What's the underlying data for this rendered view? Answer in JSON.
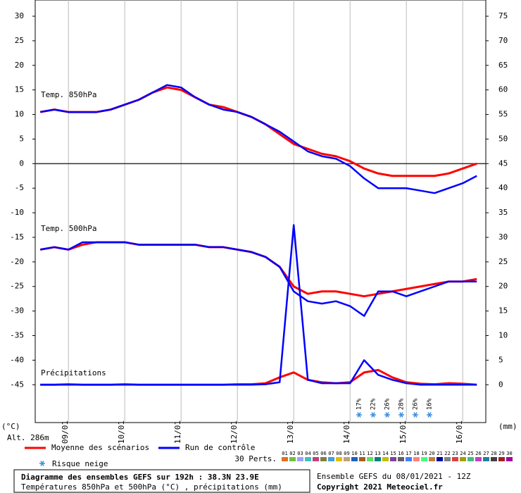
{
  "chart_data": {
    "type": "line",
    "title": "Diagramme des ensembles GEFS sur 192h : 38.3N 23.9E",
    "subtitle": "Températures 850hPa et 500hPa (°C) , précipitations (mm)",
    "run": "Ensemble GEFS du 08/01/2021 - 12Z",
    "copyright": "Copyright 2021 Meteociel.fr",
    "y_label": "(°C)",
    "y2_label": "(mm)",
    "altitude": "Alt. 286m",
    "panels": [
      "Temp. 850hPa",
      "Temp. 500hPa",
      "Précipitations"
    ],
    "panel_axes": [
      "y",
      "y",
      "y2"
    ],
    "x": [
      8.5,
      8.75,
      9,
      9.25,
      9.5,
      9.75,
      10,
      10.25,
      10.5,
      10.75,
      11,
      11.25,
      11.5,
      11.75,
      12,
      12.25,
      12.5,
      12.75,
      13,
      13.25,
      13.5,
      13.75,
      14,
      14.25,
      14.5,
      14.75,
      15,
      15.25,
      15.5,
      15.75,
      16,
      16.25
    ],
    "xlim": [
      8.41,
      16.41
    ],
    "xticks": [
      {
        "value": 9,
        "label": "09/01"
      },
      {
        "value": 10,
        "label": "10/01"
      },
      {
        "value": 11,
        "label": "11/01"
      },
      {
        "value": 12,
        "label": "12/01"
      },
      {
        "value": 13,
        "label": "13/01"
      },
      {
        "value": 14,
        "label": "14/01"
      },
      {
        "value": 15,
        "label": "15/01"
      },
      {
        "value": 16,
        "label": "16/01"
      }
    ],
    "ylim": [
      -52.7,
      33.3
    ],
    "yticks": [
      30,
      25,
      20,
      15,
      10,
      5,
      0,
      -5,
      -10,
      -15,
      -20,
      -25,
      -30,
      -35,
      -40,
      -45
    ],
    "y2lim": [
      -7.7,
      78.3
    ],
    "y2ticks": [
      75,
      70,
      65,
      60,
      55,
      50,
      45,
      40,
      35,
      30,
      25,
      20,
      15,
      10,
      5,
      0
    ],
    "grid": true,
    "series": [
      {
        "name": "Moyenne des scénarios",
        "color": "#ff0000",
        "values": [
          [
            10.5,
            11,
            10.5,
            10.5,
            10.5,
            11,
            12,
            13,
            14.5,
            15.5,
            15,
            13.5,
            12,
            11.5,
            10.5,
            9.5,
            8,
            6,
            4,
            3,
            2,
            1.5,
            0.5,
            -1,
            -2,
            -2.5,
            -2.5,
            -2.5,
            -2.5,
            -2,
            -1,
            0
          ],
          [
            -17.5,
            -17,
            -17.5,
            -16.5,
            -16,
            -16,
            -16,
            -16.5,
            -16.5,
            -16.5,
            -16.5,
            -16.5,
            -17,
            -17,
            -17.5,
            -18,
            -19,
            -21,
            -25,
            -26.5,
            -26,
            -26,
            -26.5,
            -27,
            -26.5,
            -26,
            -25.5,
            -25,
            -24.5,
            -24,
            -24,
            -23.5
          ],
          [
            0,
            0,
            0.1,
            0,
            0,
            0,
            0.1,
            0,
            0,
            0,
            0,
            0,
            0,
            0,
            0.1,
            0.1,
            0.3,
            1.5,
            2.5,
            1,
            0.5,
            0.3,
            0.5,
            2.5,
            3,
            1.5,
            0.5,
            0.2,
            0.1,
            0.3,
            0.2,
            0
          ]
        ]
      },
      {
        "name": "Run de contrôle",
        "color": "#0000ff",
        "values": [
          [
            10.5,
            11,
            10.5,
            10.5,
            10.5,
            11,
            12,
            13,
            14.5,
            16,
            15.5,
            13.5,
            12,
            11,
            10.5,
            9.5,
            8,
            6.5,
            4.5,
            2.5,
            1.5,
            1,
            -0.5,
            -3,
            -5,
            -5,
            -5,
            -5.5,
            -6,
            -5,
            -4,
            -2.5
          ],
          [
            -17.5,
            -17,
            -17.5,
            -16,
            -16,
            -16,
            -16,
            -16.5,
            -16.5,
            -16.5,
            -16.5,
            -16.5,
            -17,
            -17,
            -17.5,
            -18,
            -19,
            -21,
            -26,
            -28,
            -28.5,
            -28,
            -29,
            -31,
            -26,
            -26,
            -27,
            -26,
            -25,
            -24,
            -24,
            -24
          ],
          [
            0,
            0,
            0,
            0,
            0,
            0,
            0,
            0,
            0,
            0,
            0,
            0,
            0,
            0,
            0,
            0,
            0.1,
            0.5,
            32.5,
            1,
            0.3,
            0.3,
            0.3,
            5,
            2,
            1,
            0.3,
            0,
            0,
            0,
            0,
            0
          ]
        ]
      }
    ],
    "snow_risk": {
      "label": "Risque neige",
      "x": [
        14.16,
        14.41,
        14.66,
        14.91,
        15.16,
        15.41
      ],
      "values": [
        17,
        22,
        26,
        28,
        26,
        16
      ],
      "value_labels": [
        "17%",
        "22%",
        "26%",
        "28%",
        "26%",
        "16%"
      ]
    },
    "members": {
      "label": "30 Perts.",
      "names": [
        "01",
        "02",
        "03",
        "04",
        "05",
        "06",
        "07",
        "08",
        "09",
        "10",
        "11",
        "12",
        "13",
        "14",
        "15",
        "16",
        "17",
        "18",
        "19",
        "20",
        "21",
        "22",
        "23",
        "24",
        "25",
        "26",
        "27",
        "28",
        "29",
        "30"
      ],
      "colors": [
        "#e07020",
        "#70c040",
        "#a0a0ff",
        "#40c0c0",
        "#c04080",
        "#808040",
        "#40a0e0",
        "#e0c000",
        "#c0a080",
        "#2060c0",
        "#a06020",
        "#60e060",
        "#008080",
        "#c0c000",
        "#8040a0",
        "#606060",
        "#4080ff",
        "#ff8080",
        "#40ff80",
        "#c08040",
        "#0000a0",
        "#808080",
        "#e04040",
        "#a0a000",
        "#40c080",
        "#c040c0",
        "#2080a0",
        "#404040",
        "#a02020",
        "#a000a0"
      ]
    }
  }
}
